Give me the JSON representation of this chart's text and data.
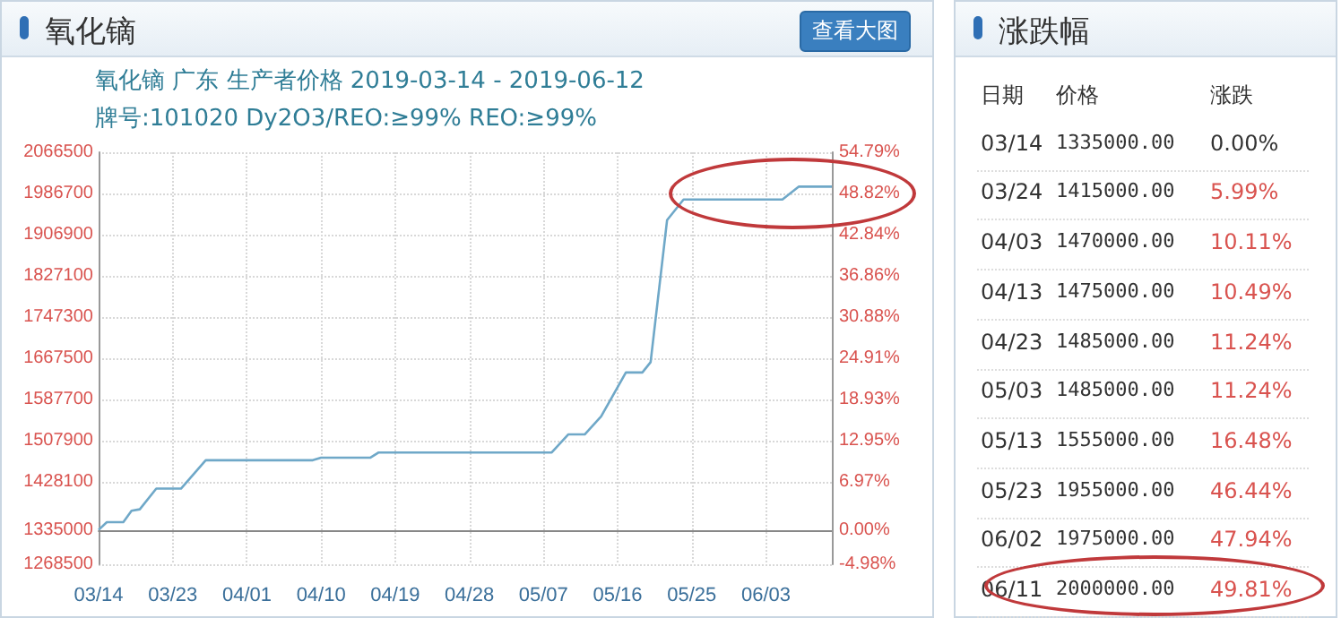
{
  "chart_data": [
    {
      "type": "line",
      "title": "氧化镝",
      "subtitle": "氧化镝 广东 生产者价格 2019-03-14 - 2019-06-12\n牌号:101020 Dy2O3/REO:≥99% REO:≥99%",
      "annotations": [
        "查看大图"
      ],
      "color": "#6fa8c8",
      "marker": "none",
      "line_style": "solid",
      "grid": true,
      "x": [
        "2019-03-14",
        "2019-03-15",
        "2019-03-17",
        "2019-03-18",
        "2019-03-19",
        "2019-03-21",
        "2019-03-24",
        "2019-03-27",
        "2019-04-09",
        "2019-04-10",
        "2019-04-16",
        "2019-04-17",
        "2019-05-08",
        "2019-05-10",
        "2019-05-12",
        "2019-05-14",
        "2019-05-17",
        "2019-05-19",
        "2019-05-20",
        "2019-05-22",
        "2019-05-23",
        "2019-05-24",
        "2019-06-05",
        "2019-06-07",
        "2019-06-11"
      ],
      "values": [
        1335000,
        1350000,
        1350000,
        1372000,
        1375000,
        1415000,
        1415000,
        1470000,
        1470000,
        1475000,
        1475000,
        1485000,
        1485000,
        1520000,
        1520000,
        1555000,
        1640000,
        1640000,
        1660000,
        1935000,
        1955000,
        1975000,
        1975000,
        2000000,
        2000000
      ],
      "xlim": [
        "2019-03-14",
        "2019-06-11"
      ],
      "xticks": [
        {
          "value": "2019-03-14",
          "label": "03/14"
        },
        {
          "value": "2019-03-23",
          "label": "03/23"
        },
        {
          "value": "2019-04-01",
          "label": "04/01"
        },
        {
          "value": "2019-04-10",
          "label": "04/10"
        },
        {
          "value": "2019-04-19",
          "label": "04/19"
        },
        {
          "value": "2019-04-28",
          "label": "04/28"
        },
        {
          "value": "2019-05-07",
          "label": "05/07"
        },
        {
          "value": "2019-05-16",
          "label": "05/16"
        },
        {
          "value": "2019-05-25",
          "label": "05/25"
        },
        {
          "value": "2019-06-03",
          "label": "06/03"
        }
      ],
      "ylim": [
        1268500,
        2066500
      ],
      "yticks": [
        1268500,
        1335000,
        1428100,
        1507900,
        1587700,
        1667500,
        1747300,
        1827100,
        1906900,
        1986700,
        2066500
      ],
      "y2lim": [
        -4.98,
        54.79
      ],
      "y2ticks": [
        {
          "value": -4.98,
          "label": "-4.98%"
        },
        {
          "value": 0,
          "label": "0.00%"
        },
        {
          "value": 6.97,
          "label": "6.97%"
        },
        {
          "value": 12.95,
          "label": "12.95%"
        },
        {
          "value": 18.93,
          "label": "18.93%"
        },
        {
          "value": 24.91,
          "label": "24.91%"
        },
        {
          "value": 30.88,
          "label": "30.88%"
        },
        {
          "value": 36.86,
          "label": "36.86%"
        },
        {
          "value": 42.84,
          "label": "42.84%"
        },
        {
          "value": 48.82,
          "label": "48.82%"
        },
        {
          "value": 54.79,
          "label": "54.79%"
        }
      ],
      "ref_lines": [
        {
          "axis": "y",
          "value": 1335000,
          "color": "#888888"
        }
      ]
    },
    {
      "type": "other",
      "title": "涨跌幅",
      "annotations": [
        "日期",
        "价格",
        "涨跌",
        "03/14",
        "1335000.00",
        "0.00%",
        "03/24",
        "1415000.00",
        "5.99%",
        "04/03",
        "1470000.00",
        "10.11%",
        "04/13",
        "1475000.00",
        "10.49%",
        "04/23",
        "1485000.00",
        "11.24%",
        "05/03",
        "1485000.00",
        "11.24%",
        "05/13",
        "1555000.00",
        "16.48%",
        "05/23",
        "1955000.00",
        "46.44%",
        "06/02",
        "1975000.00",
        "47.94%",
        "06/11",
        "2000000.00",
        "49.81%"
      ]
    }
  ]
}
